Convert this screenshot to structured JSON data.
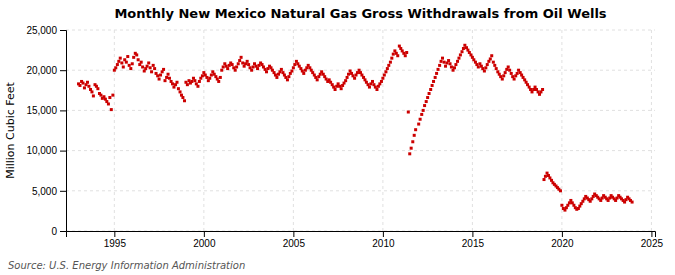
{
  "chart_data": {
    "type": "scatter",
    "title": "Monthly New Mexico Natural Gas Gross Withdrawals from Oil Wells",
    "y_label": "Million Cubic Feet",
    "annotations": [
      "Source: U.S. Energy Information Administration"
    ],
    "color": "#CC0000",
    "marker": "square",
    "grid": true,
    "xlim": [
      1992.3,
      2025.2
    ],
    "xticks": [
      1995,
      2000,
      2005,
      2010,
      2015,
      2020,
      2025
    ],
    "ylim": [
      0,
      25000
    ],
    "yticks": [
      0,
      {
        "value": 5000,
        "label": "5,000"
      },
      {
        "value": 10000,
        "label": "10,000"
      },
      {
        "value": 15000,
        "label": "15,000"
      },
      {
        "value": 20000,
        "label": "20,000"
      },
      {
        "value": 25000,
        "label": "25,000"
      }
    ],
    "x": [
      1993.0,
      1993.08,
      1993.17,
      1993.25,
      1993.33,
      1993.42,
      1993.5,
      1993.58,
      1993.67,
      1993.75,
      1993.83,
      1993.92,
      1994.0,
      1994.08,
      1994.17,
      1994.25,
      1994.33,
      1994.42,
      1994.5,
      1994.58,
      1994.67,
      1994.75,
      1994.83,
      1994.92,
      1995.0,
      1995.08,
      1995.17,
      1995.25,
      1995.33,
      1995.42,
      1995.5,
      1995.58,
      1995.67,
      1995.75,
      1995.83,
      1995.92,
      1996.0,
      1996.08,
      1996.17,
      1996.25,
      1996.33,
      1996.42,
      1996.5,
      1996.58,
      1996.67,
      1996.75,
      1996.83,
      1996.92,
      1997.0,
      1997.08,
      1997.17,
      1997.25,
      1997.33,
      1997.42,
      1997.5,
      1997.58,
      1997.67,
      1997.75,
      1997.83,
      1997.92,
      1998.0,
      1998.08,
      1998.17,
      1998.25,
      1998.33,
      1998.42,
      1998.5,
      1998.58,
      1998.67,
      1998.75,
      1998.83,
      1998.92,
      1999.0,
      1999.08,
      1999.17,
      1999.25,
      1999.33,
      1999.42,
      1999.5,
      1999.58,
      1999.67,
      1999.75,
      1999.83,
      1999.92,
      2000.0,
      2000.08,
      2000.17,
      2000.25,
      2000.33,
      2000.42,
      2000.5,
      2000.58,
      2000.67,
      2000.75,
      2000.83,
      2000.92,
      2001.0,
      2001.08,
      2001.17,
      2001.25,
      2001.33,
      2001.42,
      2001.5,
      2001.58,
      2001.67,
      2001.75,
      2001.83,
      2001.92,
      2002.0,
      2002.08,
      2002.17,
      2002.25,
      2002.33,
      2002.42,
      2002.5,
      2002.58,
      2002.67,
      2002.75,
      2002.83,
      2002.92,
      2003.0,
      2003.08,
      2003.17,
      2003.25,
      2003.33,
      2003.42,
      2003.5,
      2003.58,
      2003.67,
      2003.75,
      2003.83,
      2003.92,
      2004.0,
      2004.08,
      2004.17,
      2004.25,
      2004.33,
      2004.42,
      2004.5,
      2004.58,
      2004.67,
      2004.75,
      2004.83,
      2004.92,
      2005.0,
      2005.08,
      2005.17,
      2005.25,
      2005.33,
      2005.42,
      2005.5,
      2005.58,
      2005.67,
      2005.75,
      2005.83,
      2005.92,
      2006.0,
      2006.08,
      2006.17,
      2006.25,
      2006.33,
      2006.42,
      2006.5,
      2006.58,
      2006.67,
      2006.75,
      2006.83,
      2006.92,
      2007.0,
      2007.08,
      2007.17,
      2007.25,
      2007.33,
      2007.42,
      2007.5,
      2007.58,
      2007.67,
      2007.75,
      2007.83,
      2007.92,
      2008.0,
      2008.08,
      2008.17,
      2008.25,
      2008.33,
      2008.42,
      2008.5,
      2008.58,
      2008.67,
      2008.75,
      2008.83,
      2008.92,
      2009.0,
      2009.08,
      2009.17,
      2009.25,
      2009.33,
      2009.42,
      2009.5,
      2009.58,
      2009.67,
      2009.75,
      2009.83,
      2009.92,
      2010.0,
      2010.08,
      2010.17,
      2010.25,
      2010.33,
      2010.42,
      2010.5,
      2010.58,
      2010.67,
      2010.75,
      2010.83,
      2010.92,
      2011.0,
      2011.08,
      2011.17,
      2011.25,
      2011.33,
      2011.42,
      2011.5,
      2011.58,
      2011.67,
      2011.75,
      2011.83,
      2012.0,
      2012.08,
      2012.17,
      2012.25,
      2012.33,
      2012.42,
      2012.5,
      2012.58,
      2012.67,
      2012.75,
      2012.83,
      2012.92,
      2013.0,
      2013.08,
      2013.17,
      2013.25,
      2013.33,
      2013.42,
      2013.5,
      2013.58,
      2013.67,
      2013.75,
      2013.83,
      2013.92,
      2014.0,
      2014.08,
      2014.17,
      2014.25,
      2014.33,
      2014.42,
      2014.5,
      2014.58,
      2014.67,
      2014.75,
      2014.83,
      2014.92,
      2015.0,
      2015.08,
      2015.17,
      2015.25,
      2015.33,
      2015.42,
      2015.5,
      2015.58,
      2015.67,
      2015.75,
      2015.83,
      2015.92,
      2016.0,
      2016.08,
      2016.17,
      2016.25,
      2016.33,
      2016.42,
      2016.5,
      2016.58,
      2016.67,
      2016.75,
      2016.83,
      2016.92,
      2017.0,
      2017.08,
      2017.17,
      2017.25,
      2017.33,
      2017.42,
      2017.5,
      2017.58,
      2017.67,
      2017.75,
      2017.83,
      2017.92,
      2018.0,
      2018.08,
      2018.17,
      2018.25,
      2018.33,
      2018.42,
      2018.5,
      2018.58,
      2018.67,
      2018.75,
      2018.83,
      2018.92,
      2019.0,
      2019.08,
      2019.17,
      2019.25,
      2019.33,
      2019.42,
      2019.5,
      2019.58,
      2019.67,
      2019.75,
      2019.83,
      2019.92,
      2020.0,
      2020.08,
      2020.17,
      2020.25,
      2020.33,
      2020.42,
      2020.5,
      2020.58,
      2020.67,
      2020.75,
      2020.83,
      2020.92,
      2021.0,
      2021.08,
      2021.17,
      2021.25,
      2021.33,
      2021.42,
      2021.5,
      2021.58,
      2021.67,
      2021.75,
      2021.83,
      2021.92,
      2022.0,
      2022.08,
      2022.17,
      2022.25,
      2022.33,
      2022.42,
      2022.5,
      2022.58,
      2022.67,
      2022.75,
      2022.83,
      2022.92,
      2023.0,
      2023.08,
      2023.17,
      2023.25,
      2023.33,
      2023.42,
      2023.5,
      2023.58,
      2023.67,
      2023.75,
      2023.83,
      2023.92
    ],
    "values": [
      18300,
      18100,
      18600,
      18400,
      17800,
      18200,
      18500,
      18000,
      17600,
      17300,
      16800,
      18200,
      18000,
      17700,
      17100,
      16900,
      16500,
      16700,
      16400,
      16100,
      15800,
      16600,
      15100,
      16900,
      20000,
      20300,
      20700,
      21100,
      21500,
      20900,
      20400,
      21300,
      21000,
      21700,
      20600,
      20200,
      20800,
      21600,
      22100,
      21900,
      21300,
      20700,
      21000,
      20400,
      19900,
      20200,
      20500,
      20900,
      20300,
      19800,
      20600,
      20200,
      19600,
      19300,
      18900,
      19400,
      19800,
      20100,
      18700,
      19100,
      19500,
      19000,
      18600,
      18300,
      17900,
      18200,
      18500,
      17700,
      17300,
      16900,
      16600,
      16200,
      18500,
      18200,
      18700,
      18400,
      18600,
      19000,
      18700,
      18300,
      18000,
      18600,
      19000,
      19300,
      19700,
      19400,
      19100,
      18700,
      19000,
      19400,
      19800,
      19500,
      19200,
      18900,
      18600,
      19100,
      20000,
      20400,
      20800,
      20500,
      20200,
      20600,
      20900,
      20700,
      20300,
      20000,
      20400,
      20800,
      21200,
      21600,
      20900,
      20500,
      20800,
      21100,
      20700,
      20300,
      20000,
      20400,
      20800,
      20500,
      20200,
      20600,
      20900,
      20700,
      20400,
      20100,
      19800,
      20200,
      20500,
      20300,
      20000,
      19700,
      19400,
      19100,
      19500,
      19800,
      20100,
      19700,
      19400,
      19100,
      18800,
      19200,
      19600,
      19900,
      20300,
      20700,
      21100,
      20800,
      20500,
      20200,
      19900,
      19600,
      20000,
      20300,
      20600,
      20300,
      20000,
      19700,
      19400,
      19100,
      18800,
      19200,
      19500,
      19800,
      19500,
      19200,
      18900,
      18600,
      18800,
      18500,
      18200,
      17900,
      17600,
      18000,
      18300,
      18000,
      17700,
      18100,
      18400,
      18700,
      19100,
      19500,
      19900,
      19600,
      19300,
      19000,
      19400,
      19700,
      20000,
      19700,
      19400,
      19100,
      18800,
      18500,
      18200,
      17900,
      18300,
      18600,
      18200,
      17900,
      17600,
      18000,
      18300,
      18600,
      19000,
      19400,
      19800,
      20200,
      20600,
      21000,
      21500,
      22000,
      22400,
      22100,
      21800,
      23000,
      22700,
      22400,
      22100,
      21800,
      22200,
      14800,
      9600,
      10300,
      11100,
      11900,
      12600,
      13300,
      13900,
      14500,
      15000,
      15600,
      16100,
      16600,
      17100,
      17600,
      18100,
      18600,
      19100,
      19600,
      20100,
      20600,
      21100,
      21500,
      21000,
      20500,
      20900,
      21200,
      20800,
      20400,
      20000,
      20300,
      20700,
      21100,
      21500,
      21900,
      22300,
      22700,
      23100,
      22800,
      22500,
      22200,
      21900,
      21600,
      21300,
      21000,
      20700,
      20400,
      20800,
      20500,
      20200,
      19900,
      20300,
      20700,
      21100,
      21400,
      21800,
      21000,
      20600,
      20200,
      19800,
      19500,
      19200,
      18900,
      19300,
      19700,
      20100,
      20400,
      20000,
      19600,
      19200,
      18900,
      19300,
      19600,
      20000,
      19700,
      19400,
      19100,
      18800,
      18500,
      18200,
      17900,
      17600,
      17300,
      17600,
      17900,
      17600,
      17300,
      17000,
      17300,
      17600,
      6400,
      6800,
      7200,
      6900,
      6600,
      6300,
      6000,
      5800,
      5600,
      5400,
      5200,
      5000,
      3200,
      2800,
      2600,
      2900,
      3200,
      3500,
      3800,
      3500,
      3200,
      2900,
      2700,
      2800,
      3100,
      3400,
      3700,
      4000,
      4300,
      4100,
      3900,
      3700,
      4000,
      4300,
      4600,
      4400,
      4200,
      4000,
      3800,
      4100,
      4400,
      4200,
      4000,
      3800,
      4100,
      4400,
      4200,
      4000,
      3800,
      4100,
      4400,
      4200,
      4000,
      3800,
      3600,
      3900,
      4200,
      4000,
      3800,
      3600
    ]
  }
}
